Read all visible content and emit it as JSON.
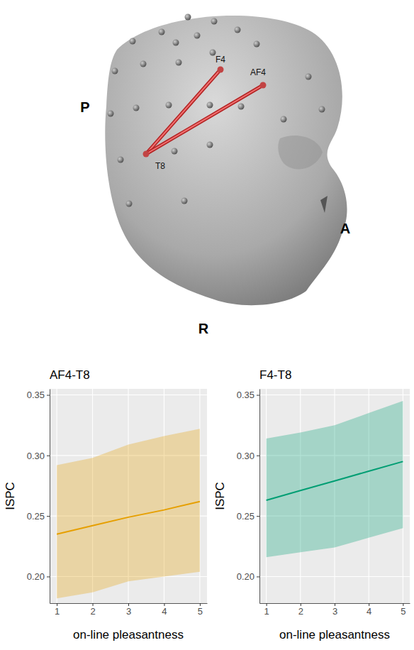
{
  "chart_data": [
    {
      "type": "line",
      "title": "AF4-T8",
      "x_label": "on-line pleasantness",
      "y_label": "ISPC",
      "x": [
        1,
        2,
        3,
        4,
        5
      ],
      "values": [
        0.235,
        0.242,
        0.249,
        0.255,
        0.262
      ],
      "ci_lower": [
        0.182,
        0.187,
        0.196,
        0.2,
        0.204
      ],
      "ci_upper": [
        0.292,
        0.298,
        0.309,
        0.316,
        0.322
      ],
      "color": "#e69f00",
      "xlim": [
        0.8,
        5.2
      ],
      "xticks": [
        1,
        2,
        3,
        4,
        5
      ],
      "ylim": [
        0.178,
        0.355
      ],
      "yticks": [
        {
          "value": 0.2,
          "label": "0.20"
        },
        0.25,
        {
          "value": 0.3,
          "label": "0.30"
        },
        0.35
      ],
      "grid": true
    },
    {
      "type": "line",
      "title": "F4-T8",
      "x_label": "on-line pleasantness",
      "y_label": "ISPC",
      "x": [
        1,
        2,
        3,
        4,
        5
      ],
      "values": [
        0.263,
        0.271,
        0.279,
        0.287,
        0.295
      ],
      "ci_lower": [
        0.216,
        0.22,
        0.224,
        0.232,
        0.24
      ],
      "ci_upper": [
        0.314,
        0.319,
        0.325,
        0.335,
        0.345
      ],
      "color": "#009e73",
      "xlim": [
        0.8,
        5.2
      ],
      "xticks": [
        1,
        2,
        3,
        4,
        5
      ],
      "ylim": [
        0.178,
        0.355
      ],
      "yticks": [
        {
          "value": 0.2,
          "label": "0.20"
        },
        0.25,
        {
          "value": 0.3,
          "label": "0.30"
        },
        0.35
      ],
      "grid": true
    }
  ],
  "diagram": {
    "orientation_labels": {
      "posterior": "P",
      "anterior": "A",
      "right": "R"
    },
    "electrodes": [
      {
        "label": "F4"
      },
      {
        "label": "AF4"
      },
      {
        "label": "T8"
      }
    ],
    "connections": [
      [
        "T8",
        "F4"
      ],
      [
        "T8",
        "AF4"
      ]
    ]
  }
}
